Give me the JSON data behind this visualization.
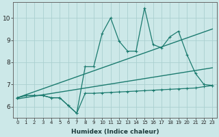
{
  "xlabel": "Humidex (Indice chaleur)",
  "bg_color": "#cce8e8",
  "line_color": "#1a7a6e",
  "grid_color": "#aad0d0",
  "x_min": -0.5,
  "x_max": 23.5,
  "y_min": 5.5,
  "y_max": 10.7,
  "x_ticks": [
    0,
    1,
    2,
    3,
    4,
    5,
    6,
    7,
    8,
    9,
    10,
    11,
    12,
    13,
    14,
    15,
    16,
    17,
    18,
    19,
    20,
    21,
    22,
    23
  ],
  "y_ticks": [
    6,
    7,
    8,
    9,
    10
  ],
  "zigzag_x": [
    0,
    1,
    2,
    3,
    4,
    5,
    6,
    7,
    8,
    9,
    10,
    11,
    12,
    13,
    14,
    15,
    16,
    17,
    18,
    19,
    20,
    21,
    22,
    23
  ],
  "zigzag_y": [
    6.4,
    6.5,
    6.5,
    6.5,
    6.4,
    6.4,
    6.05,
    5.7,
    7.8,
    7.8,
    9.3,
    10.0,
    8.95,
    8.5,
    8.5,
    10.45,
    8.8,
    8.65,
    9.15,
    9.4,
    8.35,
    7.5,
    7.0,
    6.95
  ],
  "flat_x": [
    0,
    1,
    2,
    3,
    4,
    5,
    6,
    7,
    8,
    9,
    10,
    11,
    12,
    13,
    14,
    15,
    16,
    17,
    18,
    19,
    20,
    21,
    22,
    23
  ],
  "flat_y": [
    6.4,
    6.5,
    6.5,
    6.5,
    6.4,
    6.4,
    6.05,
    5.7,
    6.6,
    6.6,
    6.62,
    6.64,
    6.66,
    6.68,
    6.7,
    6.72,
    6.74,
    6.76,
    6.78,
    6.8,
    6.82,
    6.84,
    6.9,
    6.95
  ],
  "trend1_x": [
    0,
    23
  ],
  "trend1_y": [
    6.4,
    9.5
  ],
  "trend2_x": [
    0,
    23
  ],
  "trend2_y": [
    6.35,
    7.75
  ]
}
